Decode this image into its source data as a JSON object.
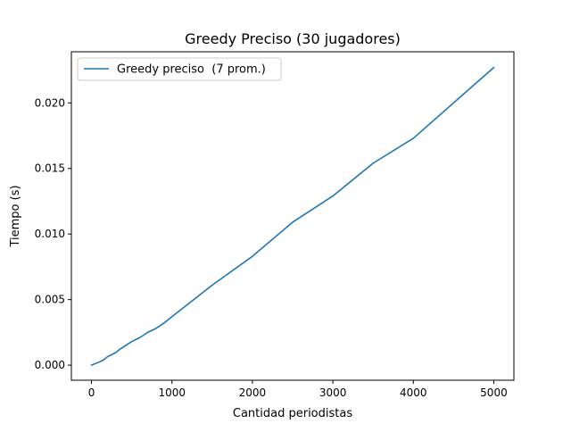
{
  "chart_data": {
    "type": "line",
    "title": "Greedy Preciso (30 jugadores)",
    "xlabel": "Cantidad periodistas",
    "ylabel": "Tiempo (s)",
    "xlim": [
      -250,
      5250
    ],
    "ylim": [
      -0.00115,
      0.0239
    ],
    "x_ticks": [
      0,
      1000,
      2000,
      3000,
      4000,
      5000
    ],
    "x_tick_labels": [
      "0",
      "1000",
      "2000",
      "3000",
      "4000",
      "5000"
    ],
    "y_ticks": [
      0.0,
      0.005,
      0.01,
      0.015,
      0.02
    ],
    "y_tick_labels": [
      "0.000",
      "0.005",
      "0.010",
      "0.015",
      "0.020"
    ],
    "grid": false,
    "legend_position": "upper-left",
    "series": [
      {
        "name": "Greedy preciso  (7 prom.)",
        "color": "#1f77b4",
        "x": [
          0,
          100,
          150,
          200,
          250,
          300,
          350,
          400,
          450,
          500,
          600,
          700,
          800,
          900,
          1000,
          1500,
          2000,
          2500,
          3000,
          3500,
          4000,
          5000
        ],
        "y": [
          0.0,
          0.00025,
          0.0004,
          0.00065,
          0.0008,
          0.00095,
          0.0012,
          0.0014,
          0.0016,
          0.0018,
          0.0021,
          0.0025,
          0.0028,
          0.0032,
          0.0037,
          0.0061,
          0.0083,
          0.0109,
          0.0129,
          0.0154,
          0.0173,
          0.0227
        ]
      }
    ]
  }
}
